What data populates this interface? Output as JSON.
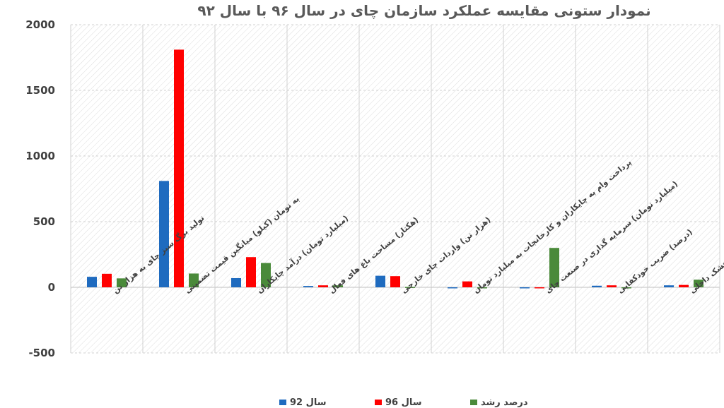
{
  "chart_data": {
    "type": "bar",
    "title": "نمودار ستونی مقایسه عملکرد سازمان چای در سال ۹۶ با سال ۹۲",
    "ylim": [
      -500,
      2000
    ],
    "yticks": [
      -500,
      0,
      500,
      1000,
      1500,
      2000
    ],
    "grid": true,
    "legend_position": "bottom",
    "categories": [
      "تولید برگ سبز چای به هزار تن",
      "به تومان (کیلو) میانگین قیمت تضمینی",
      "(میلیارد تومان) درآمد چایکاران",
      "(هکتار) مساحت باغ های فعال",
      "(هزار تن) واردات چای خارجی",
      "پرداخت وام به چایکاران و کارخانجات به میلیارد تومان",
      "(میلیارد تومان) سرمایه گذاری در صنعت چای",
      "(درصد) ضریب خودکفایی",
      "(هزار تن) فروش چای خشک داخلی"
    ],
    "series": [
      {
        "name": "سال 92",
        "color": "#1f6bbf",
        "values": [
          80,
          810,
          70,
          10,
          88,
          0,
          -5,
          12,
          15
        ]
      },
      {
        "name": "سال 96",
        "color": "#ff0000",
        "values": [
          103,
          1810,
          230,
          15,
          85,
          45,
          0,
          15,
          18
        ]
      },
      {
        "name": "درصد رشد",
        "color": "#4a8a3a",
        "values": [
          68,
          105,
          185,
          15,
          3,
          0,
          300,
          0,
          58
        ]
      }
    ]
  }
}
